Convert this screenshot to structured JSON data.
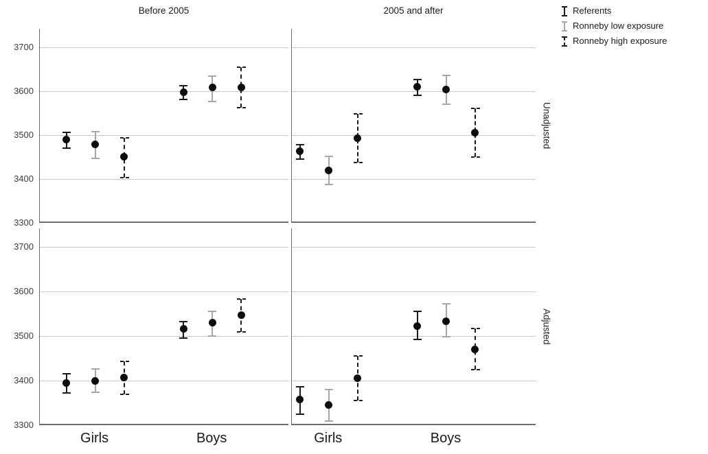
{
  "figure": {
    "columns": [
      "Before 2005",
      "2005 and after"
    ],
    "rows": [
      "Unadjusted",
      "Adjusted"
    ],
    "x_categories": [
      "Girls",
      "Boys"
    ],
    "y_ticks": [
      "3300",
      "3400",
      "3500",
      "3600",
      "3700"
    ]
  },
  "legend": {
    "items": [
      {
        "label": "Referents",
        "style": "ref",
        "icon": "solid-black-errorbar-icon",
        "color": "#1a1a1a"
      },
      {
        "label": "Ronneby low exposure",
        "style": "low",
        "icon": "gray-errorbar-icon",
        "color": "#a6a6a6"
      },
      {
        "label": "Ronneby high exposure",
        "style": "high",
        "icon": "dashed-black-errorbar-icon",
        "color": "#1a1a1a"
      }
    ]
  },
  "colors": {
    "point": "#0d0d0d",
    "referents": "#1a1a1a",
    "low_exposure": "#a6a6a6",
    "high_exposure": "#1a1a1a",
    "gridline": "#c9c9c9",
    "axis": "#6e6e6e"
  },
  "chart_data": {
    "type": "errorbar",
    "title": "",
    "xlabel": "",
    "ylabel": "",
    "grid": true,
    "legend_position": "top-right",
    "y_axis": {
      "ticks": [
        3300,
        3400,
        3500,
        3600,
        3700
      ],
      "range": [
        3300,
        3742
      ]
    },
    "x_categories": [
      "Girls",
      "Boys"
    ],
    "series": [
      "Referents",
      "Ronneby low exposure",
      "Ronneby high exposure"
    ],
    "panels": [
      {
        "row": "Unadjusted",
        "column": "Before 2005",
        "points": [
          {
            "category": "Girls",
            "series": "Referents",
            "value": 3490,
            "ci": [
              3471,
              3506
            ]
          },
          {
            "category": "Girls",
            "series": "Ronneby low exposure",
            "value": 3479,
            "ci": [
              3447,
              3508
            ]
          },
          {
            "category": "Girls",
            "series": "Ronneby high exposure",
            "value": 3451,
            "ci": [
              3403,
              3494
            ]
          },
          {
            "category": "Boys",
            "series": "Referents",
            "value": 3597,
            "ci": [
              3581,
              3612
            ]
          },
          {
            "category": "Boys",
            "series": "Ronneby low exposure",
            "value": 3608,
            "ci": [
              3576,
              3635
            ]
          },
          {
            "category": "Boys",
            "series": "Ronneby high exposure",
            "value": 3608,
            "ci": [
              3562,
              3654
            ]
          }
        ]
      },
      {
        "row": "Unadjusted",
        "column": "2005 and after",
        "points": [
          {
            "category": "Girls",
            "series": "Referents",
            "value": 3463,
            "ci": [
              3445,
              3478
            ]
          },
          {
            "category": "Girls",
            "series": "Ronneby low exposure",
            "value": 3420,
            "ci": [
              3388,
              3451
            ]
          },
          {
            "category": "Girls",
            "series": "Ronneby high exposure",
            "value": 3493,
            "ci": [
              3437,
              3548
            ]
          },
          {
            "category": "Boys",
            "series": "Referents",
            "value": 3610,
            "ci": [
              3590,
              3627
            ]
          },
          {
            "category": "Boys",
            "series": "Ronneby low exposure",
            "value": 3604,
            "ci": [
              3570,
              3636
            ]
          },
          {
            "category": "Boys",
            "series": "Ronneby high exposure",
            "value": 3506,
            "ci": [
              3450,
              3561
            ]
          }
        ]
      },
      {
        "row": "Adjusted",
        "column": "Before 2005",
        "points": [
          {
            "category": "Girls",
            "series": "Referents",
            "value": 3395,
            "ci": [
              3373,
              3416
            ]
          },
          {
            "category": "Girls",
            "series": "Ronneby low exposure",
            "value": 3400,
            "ci": [
              3374,
              3427
            ]
          },
          {
            "category": "Girls",
            "series": "Ronneby high exposure",
            "value": 3407,
            "ci": [
              3369,
              3443
            ]
          },
          {
            "category": "Boys",
            "series": "Referents",
            "value": 3516,
            "ci": [
              3495,
              3533
            ]
          },
          {
            "category": "Boys",
            "series": "Ronneby low exposure",
            "value": 3530,
            "ci": [
              3500,
              3556
            ]
          },
          {
            "category": "Boys",
            "series": "Ronneby high exposure",
            "value": 3547,
            "ci": [
              3510,
              3583
            ]
          }
        ]
      },
      {
        "row": "Adjusted",
        "column": "2005 and after",
        "points": [
          {
            "category": "Girls",
            "series": "Referents",
            "value": 3358,
            "ci": [
              3325,
              3387
            ]
          },
          {
            "category": "Girls",
            "series": "Ronneby low exposure",
            "value": 3345,
            "ci": [
              3309,
              3380
            ]
          },
          {
            "category": "Girls",
            "series": "Ronneby high exposure",
            "value": 3406,
            "ci": [
              3356,
              3455
            ]
          },
          {
            "category": "Boys",
            "series": "Referents",
            "value": 3523,
            "ci": [
              3493,
              3555
            ]
          },
          {
            "category": "Boys",
            "series": "Ronneby low exposure",
            "value": 3534,
            "ci": [
              3498,
              3572
            ]
          },
          {
            "category": "Boys",
            "series": "Ronneby high exposure",
            "value": 3470,
            "ci": [
              3424,
              3517
            ]
          }
        ]
      }
    ]
  }
}
